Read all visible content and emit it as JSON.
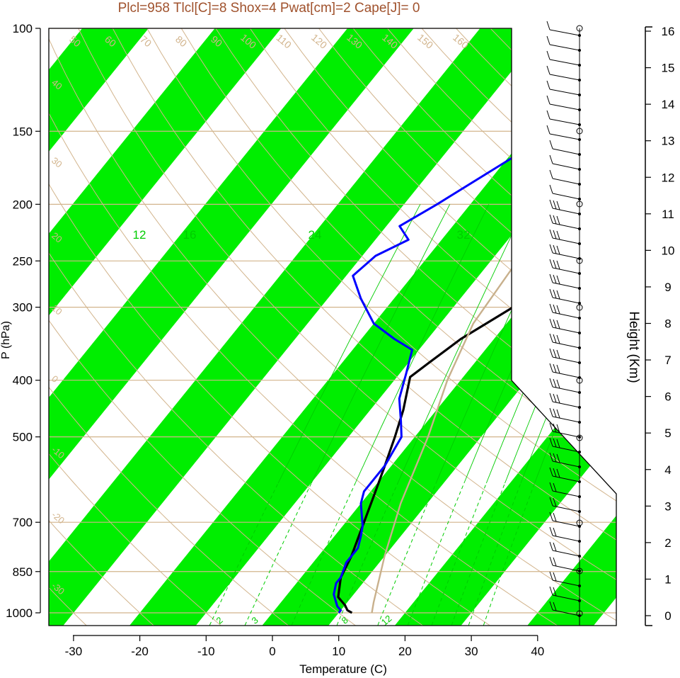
{
  "chart_data": {
    "type": "line",
    "title": "Plcl=958 Tlcl[C]=8 Shox=4 Pwat[cm]=2 Cape[J]= 0",
    "xlabel": "Temperature (C)",
    "ylabel": "P (hPa)",
    "y2label": "Height (Km)",
    "xlim": [
      -33,
      50
    ],
    "ylim": [
      1050,
      100
    ],
    "x_ticks": [
      "-30",
      "-20",
      "-10",
      "0",
      "10",
      "20",
      "30",
      "40"
    ],
    "y_ticks": [
      "100",
      "150",
      "200",
      "250",
      "300",
      "400",
      "500",
      "700",
      "850",
      "1000"
    ],
    "y2_ticks": [
      "0",
      "1",
      "2",
      "3",
      "4",
      "5",
      "6",
      "7",
      "8",
      "9",
      "10",
      "11",
      "12",
      "13",
      "14",
      "15",
      "16"
    ],
    "colors": {
      "title": "#a0522d",
      "band": "#00ee00",
      "isotherm": "#d2b48c",
      "mixing_ratio": "#00cc00",
      "temperature": "#000000",
      "dewpoint": "#0000ff",
      "parcel": "#c8b08c"
    },
    "labels": {
      "dry_adiabats": [
        "50",
        "60",
        "70",
        "80",
        "90",
        "100",
        "110",
        "120",
        "130",
        "140",
        "150",
        "160"
      ],
      "isotherms_right": [
        "30",
        "20",
        "10",
        "0",
        "-10",
        "-20",
        "-30"
      ],
      "isotherms_left": [
        "40",
        "30",
        "20",
        "10",
        "0",
        "-10",
        "-20",
        "-30"
      ],
      "moist_top": [
        "12",
        "16",
        "24",
        "32"
      ],
      "mixing_bottom": [
        "2",
        "3",
        "8",
        "12"
      ]
    },
    "series": [
      {
        "name": "",
        "key": "temperature",
        "points": [
          [
            12,
            1000
          ],
          [
            11,
            990
          ],
          [
            10,
            970
          ],
          [
            8,
            940
          ],
          [
            6,
            870
          ],
          [
            5,
            800
          ],
          [
            3,
            710
          ],
          [
            1,
            630
          ],
          [
            -1,
            560
          ],
          [
            -3,
            500
          ],
          [
            -5,
            450
          ],
          [
            -8,
            395
          ],
          [
            -7,
            375
          ],
          [
            -5,
            340
          ],
          [
            -1,
            300
          ],
          [
            4,
            265
          ],
          [
            8,
            238
          ],
          [
            12,
            210
          ],
          [
            14,
            190
          ],
          [
            16,
            170
          ],
          [
            18,
            150
          ],
          [
            20,
            140
          ],
          [
            23,
            120
          ],
          [
            24,
            110
          ],
          [
            26,
            100
          ]
        ]
      },
      {
        "name": "",
        "key": "dewpoint",
        "points": [
          [
            10,
            1000
          ],
          [
            10,
            990
          ],
          [
            9,
            975
          ],
          [
            7,
            930
          ],
          [
            6,
            890
          ],
          [
            6,
            870
          ],
          [
            5,
            820
          ],
          [
            5,
            775
          ],
          [
            4,
            740
          ],
          [
            3,
            710
          ],
          [
            0,
            650
          ],
          [
            -1,
            620
          ],
          [
            -1,
            560
          ],
          [
            -2,
            500
          ],
          [
            -4,
            470
          ],
          [
            -7,
            430
          ],
          [
            -9,
            390
          ],
          [
            -11,
            355
          ],
          [
            -15,
            340
          ],
          [
            -20,
            320
          ],
          [
            -25,
            290
          ],
          [
            -29,
            265
          ],
          [
            -28,
            245
          ],
          [
            -25,
            230
          ],
          [
            -28,
            218
          ],
          [
            -25,
            200
          ],
          [
            -20,
            170
          ],
          [
            -15,
            145
          ],
          [
            -10,
            120
          ],
          [
            -6,
            102
          ]
        ]
      },
      {
        "name": "",
        "key": "parcel",
        "points": [
          [
            15,
            1000
          ],
          [
            14,
            960
          ],
          [
            10,
            800
          ],
          [
            6,
            650
          ],
          [
            2,
            500
          ],
          [
            -2,
            400
          ],
          [
            -5,
            320
          ],
          [
            -6,
            250
          ],
          [
            -7,
            220
          ],
          [
            -6,
            210
          ],
          [
            -2,
            180
          ],
          [
            4,
            150
          ],
          [
            10,
            125
          ],
          [
            16,
            102
          ]
        ]
      }
    ]
  }
}
